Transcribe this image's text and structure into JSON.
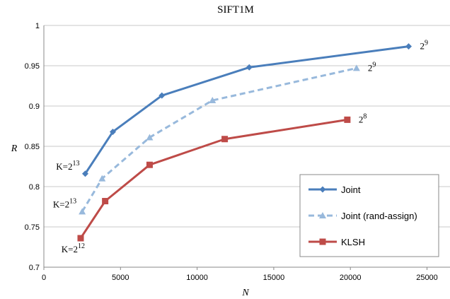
{
  "chart_data": {
    "type": "line",
    "title": "SIFT1M",
    "xlabel": "N",
    "ylabel": "R",
    "xlim": [
      0,
      26500
    ],
    "ylim": [
      0.7,
      1.0
    ],
    "xticks": [
      0,
      5000,
      10000,
      15000,
      20000,
      25000
    ],
    "xtick_labels": [
      "0",
      "5000",
      "10000",
      "15000",
      "20000",
      "25000"
    ],
    "yticks": [
      0.7,
      0.75,
      0.8,
      0.85,
      0.9,
      0.95,
      1.0
    ],
    "ytick_labels": [
      "0.7",
      "0.75",
      "0.8",
      "0.85",
      "0.9",
      "0.95",
      "1"
    ],
    "grid": "horizontal",
    "legend_position": "bottom-right",
    "series": [
      {
        "name": "Joint",
        "color": "#4a7ebb",
        "style": "solid",
        "marker": "diamond",
        "x": [
          2700,
          4500,
          7700,
          13400,
          23800
        ],
        "y": [
          0.816,
          0.868,
          0.913,
          0.948,
          0.974
        ]
      },
      {
        "name": "Joint (rand-assign)",
        "color": "#98b9dc",
        "style": "dashed",
        "marker": "triangle",
        "x": [
          2500,
          3800,
          6900,
          11000,
          20400
        ],
        "y": [
          0.769,
          0.81,
          0.861,
          0.907,
          0.947
        ]
      },
      {
        "name": "KLSH",
        "color": "#be4b48",
        "style": "solid",
        "marker": "square",
        "x": [
          2400,
          4000,
          6900,
          11800,
          19800
        ],
        "y": [
          0.736,
          0.782,
          0.827,
          0.859,
          0.883
        ]
      }
    ],
    "annotations": [
      {
        "id": "joint-start",
        "base": "K=2",
        "exp": "13",
        "anchor_x": 2700,
        "anchor_y": 0.816,
        "side": "left"
      },
      {
        "id": "rand-start",
        "base": "K=2",
        "exp": "13",
        "anchor_x": 2500,
        "anchor_y": 0.769,
        "side": "left"
      },
      {
        "id": "klsh-start",
        "base": "K=2",
        "exp": "12",
        "anchor_x": 2400,
        "anchor_y": 0.736,
        "side": "left"
      },
      {
        "id": "joint-end",
        "base": "2",
        "exp": "9",
        "anchor_x": 23800,
        "anchor_y": 0.974,
        "side": "right"
      },
      {
        "id": "rand-end",
        "base": "2",
        "exp": "9",
        "anchor_x": 20400,
        "anchor_y": 0.947,
        "side": "right"
      },
      {
        "id": "klsh-end",
        "base": "2",
        "exp": "8",
        "anchor_x": 19800,
        "anchor_y": 0.883,
        "side": "right"
      }
    ]
  }
}
